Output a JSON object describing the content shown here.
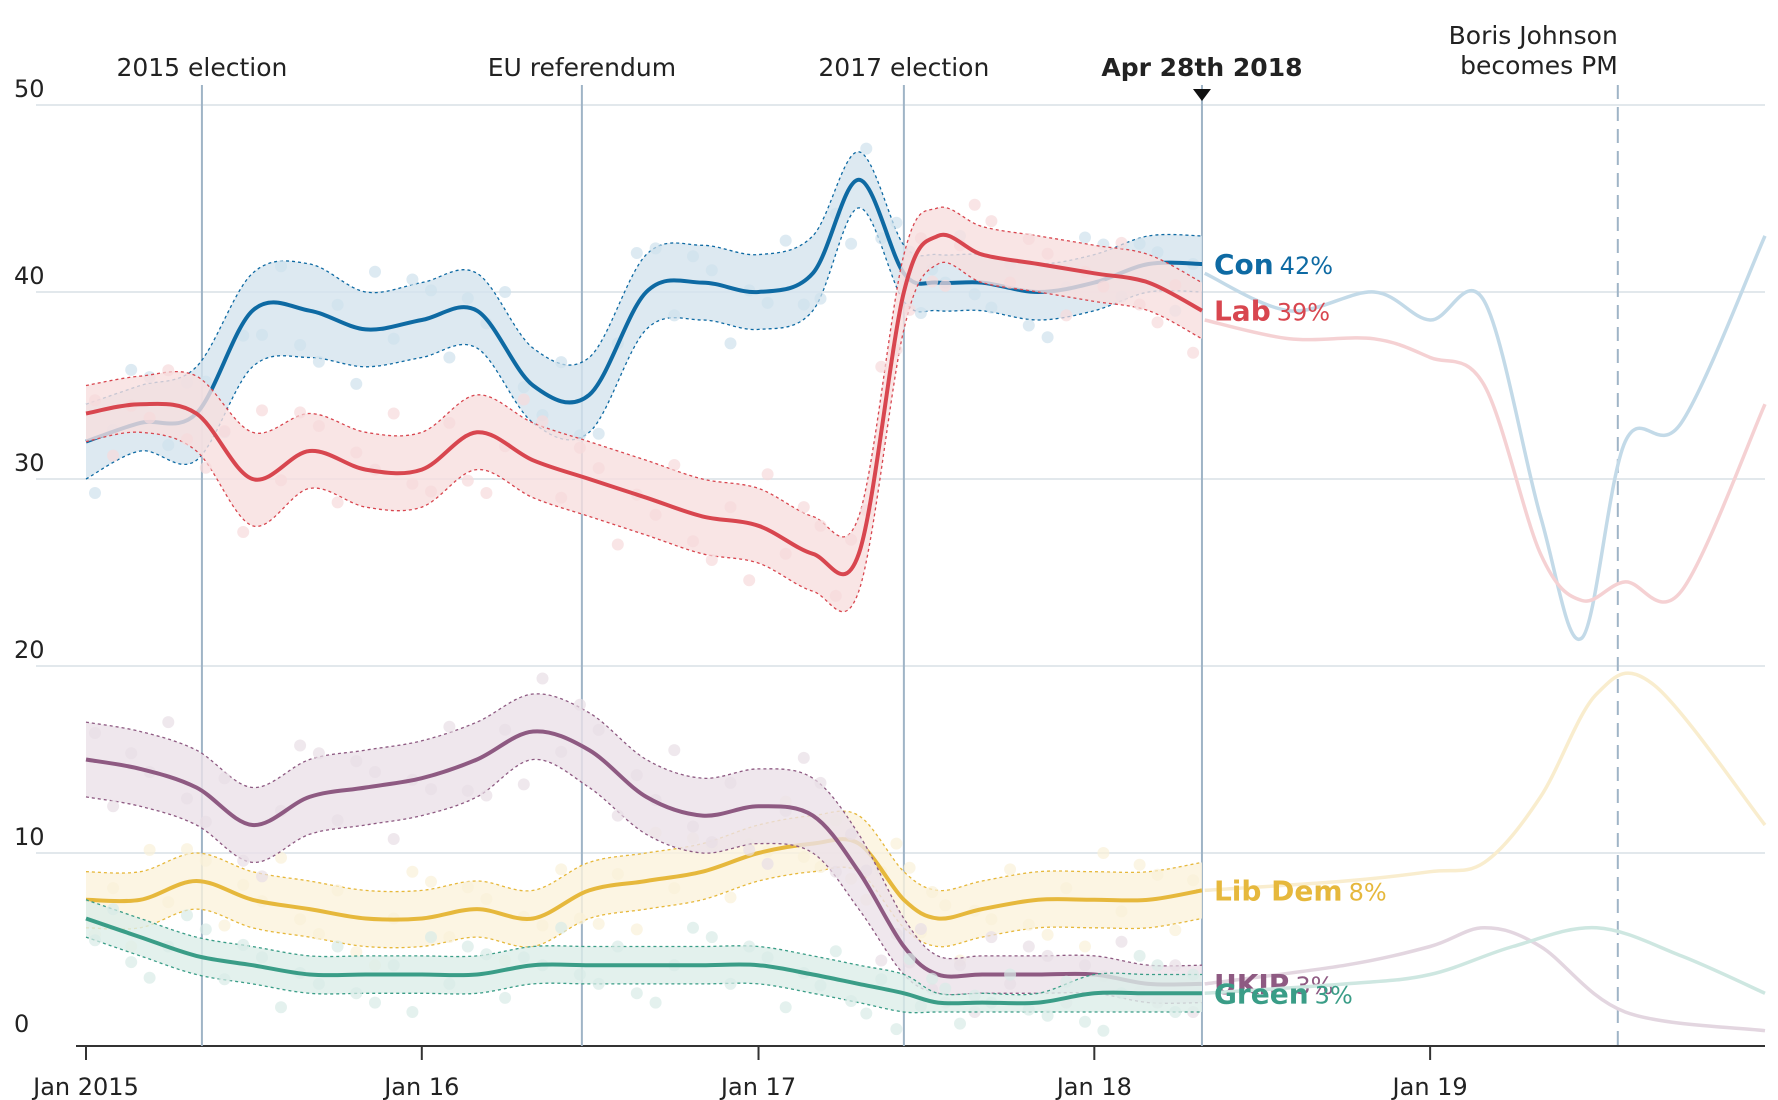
{
  "chart_data": {
    "type": "line",
    "title": "",
    "xlabel": "",
    "ylabel": "",
    "ylim": [
      0,
      50
    ],
    "yticks": [
      "0",
      "10",
      "20",
      "30",
      "40",
      "50"
    ],
    "xticks": [
      {
        "date": "2015-01-01",
        "label": "Jan 2015"
      },
      {
        "date": "2016-01-01",
        "label": "Jan 16"
      },
      {
        "date": "2017-01-01",
        "label": "Jan 17"
      },
      {
        "date": "2018-01-01",
        "label": "Jan 18"
      },
      {
        "date": "2019-01-01",
        "label": "Jan 19"
      }
    ],
    "xrange": [
      "2015-01-01",
      "2019-12-31"
    ],
    "grid": true,
    "legend": "inline labels at series ends",
    "current_date": "2018-04-28",
    "events": [
      {
        "date": "2015-05-07",
        "label": "2015 election",
        "style": "solid",
        "bold": false
      },
      {
        "date": "2016-06-23",
        "label": "EU referendum",
        "style": "solid",
        "bold": false
      },
      {
        "date": "2017-06-08",
        "label": "2017 election",
        "style": "solid",
        "bold": false
      },
      {
        "date": "2018-04-28",
        "label": "Apr 28th 2018",
        "style": "solid",
        "bold": true
      },
      {
        "date": "2019-07-24",
        "label": "Boris Johnson becomes PM",
        "label_lines": [
          "Boris Johnson",
          "becomes PM"
        ],
        "style": "dashed",
        "bold": false
      }
    ],
    "series": [
      {
        "name": "Con",
        "pct_label": "42%",
        "color": "#0e6aa3",
        "x": [
          "2015-01-01",
          "2015-03-01",
          "2015-05-01",
          "2015-07-01",
          "2015-09-01",
          "2015-11-01",
          "2016-01-01",
          "2016-03-01",
          "2016-05-01",
          "2016-07-01",
          "2016-09-01",
          "2016-11-01",
          "2017-01-01",
          "2017-03-01",
          "2017-04-20",
          "2017-06-08",
          "2017-07-15",
          "2017-09-01",
          "2017-11-01",
          "2018-01-01",
          "2018-03-01",
          "2018-04-28"
        ],
        "y": [
          32,
          33,
          33.5,
          39,
          39,
          38,
          38.5,
          39,
          35,
          34.5,
          40,
          40.5,
          40,
          41,
          46,
          41,
          40.5,
          40.5,
          40,
          40.5,
          41.5,
          41.5
        ],
        "band": [
          [
            30,
            34
          ],
          [
            31.5,
            35
          ],
          [
            31,
            36
          ],
          [
            36,
            41
          ],
          [
            36.5,
            41.5
          ],
          [
            36,
            40
          ],
          [
            36.5,
            40.5
          ],
          [
            37,
            41
          ],
          [
            33,
            37
          ],
          [
            32.5,
            36.5
          ],
          [
            38,
            42
          ],
          [
            38.5,
            42.5
          ],
          [
            38,
            42
          ],
          [
            39,
            43
          ],
          [
            44.5,
            47.5
          ],
          [
            39.5,
            42.5
          ],
          [
            39,
            42
          ],
          [
            39,
            42
          ],
          [
            38.5,
            41.5
          ],
          [
            39,
            42
          ],
          [
            40,
            43
          ],
          [
            40,
            43
          ]
        ],
        "future_x": [
          "2018-05-01",
          "2018-08-01",
          "2018-11-01",
          "2019-01-01",
          "2019-03-01",
          "2019-05-01",
          "2019-06-15",
          "2019-08-01",
          "2019-10-01",
          "2019-12-31"
        ],
        "future_y": [
          41,
          39,
          40,
          38.5,
          39.5,
          28,
          21.5,
          32,
          33,
          43
        ]
      },
      {
        "name": "Lab",
        "pct_label": "39%",
        "color": "#d8464f",
        "x": [
          "2015-01-01",
          "2015-03-01",
          "2015-05-01",
          "2015-07-01",
          "2015-09-01",
          "2015-11-01",
          "2016-01-01",
          "2016-03-01",
          "2016-05-01",
          "2016-07-01",
          "2016-09-01",
          "2016-11-01",
          "2017-01-01",
          "2017-03-01",
          "2017-04-20",
          "2017-06-08",
          "2017-07-15",
          "2017-09-01",
          "2017-11-01",
          "2018-01-01",
          "2018-03-01",
          "2018-04-28"
        ],
        "y": [
          33.5,
          34,
          33.5,
          30,
          31.5,
          30.5,
          30.5,
          32.5,
          31,
          30,
          29,
          28,
          27.5,
          26,
          26,
          40,
          43,
          42,
          41.5,
          41,
          40.5,
          39
        ],
        "band": [
          [
            32,
            35
          ],
          [
            32.5,
            35.5
          ],
          [
            31.5,
            35.5
          ],
          [
            27.5,
            32.5
          ],
          [
            29.5,
            33.5
          ],
          [
            28.5,
            32.5
          ],
          [
            28.5,
            32.5
          ],
          [
            30.5,
            34.5
          ],
          [
            29,
            33
          ],
          [
            28,
            32
          ],
          [
            27,
            31
          ],
          [
            26,
            30
          ],
          [
            25.5,
            29.5
          ],
          [
            24,
            28
          ],
          [
            24,
            28
          ],
          [
            38,
            42
          ],
          [
            41.5,
            44.5
          ],
          [
            40.5,
            43.5
          ],
          [
            40,
            43
          ],
          [
            39.5,
            42.5
          ],
          [
            39,
            42
          ],
          [
            37.5,
            40.5
          ]
        ],
        "future_x": [
          "2018-05-01",
          "2018-08-01",
          "2018-11-01",
          "2019-01-01",
          "2019-03-01",
          "2019-05-01",
          "2019-06-15",
          "2019-08-01",
          "2019-10-01",
          "2019-12-31"
        ],
        "future_y": [
          38.5,
          37.5,
          37.5,
          36.5,
          35,
          26,
          23.5,
          24.5,
          24,
          34
        ]
      },
      {
        "name": "Lib Dem",
        "pct_label": "8%",
        "color": "#e6b83c",
        "x": [
          "2015-01-01",
          "2015-03-01",
          "2015-05-01",
          "2015-07-01",
          "2015-09-01",
          "2015-11-01",
          "2016-01-01",
          "2016-03-01",
          "2016-05-01",
          "2016-07-01",
          "2016-09-01",
          "2016-11-01",
          "2017-01-01",
          "2017-03-01",
          "2017-04-20",
          "2017-06-08",
          "2017-07-15",
          "2017-09-01",
          "2017-11-01",
          "2018-01-01",
          "2018-03-01",
          "2018-04-28"
        ],
        "y": [
          7.5,
          7.5,
          8.5,
          7.5,
          7,
          6.5,
          6.5,
          7,
          6.5,
          8,
          8.5,
          9,
          10,
          10.5,
          10.5,
          7.5,
          6.5,
          7,
          7.5,
          7.5,
          7.5,
          8
        ],
        "band": [
          [
            6,
            9
          ],
          [
            6,
            9
          ],
          [
            7,
            10
          ],
          [
            6,
            9
          ],
          [
            5.5,
            8.5
          ],
          [
            5,
            8
          ],
          [
            5,
            8
          ],
          [
            5.5,
            8.5
          ],
          [
            5,
            8
          ],
          [
            6.5,
            9.5
          ],
          [
            7,
            10
          ],
          [
            7.5,
            10.5
          ],
          [
            8.5,
            11.5
          ],
          [
            9,
            12
          ],
          [
            9,
            12
          ],
          [
            6,
            9
          ],
          [
            5,
            8
          ],
          [
            5.5,
            8.5
          ],
          [
            6,
            9
          ],
          [
            6,
            9
          ],
          [
            6,
            9
          ],
          [
            6.5,
            9.5
          ]
        ],
        "future_x": [
          "2018-05-01",
          "2018-10-01",
          "2019-01-01",
          "2019-03-01",
          "2019-05-01",
          "2019-07-01",
          "2019-09-01",
          "2019-12-31"
        ],
        "future_y": [
          8,
          8.5,
          9,
          9.5,
          13,
          18.5,
          19,
          11.5
        ]
      },
      {
        "name": "UKIP",
        "pct_label": "3%",
        "color": "#8e5a82",
        "x": [
          "2015-01-01",
          "2015-03-01",
          "2015-05-01",
          "2015-07-01",
          "2015-09-01",
          "2015-11-01",
          "2016-01-01",
          "2016-03-01",
          "2016-05-01",
          "2016-07-01",
          "2016-09-01",
          "2016-11-01",
          "2017-01-01",
          "2017-03-01",
          "2017-04-20",
          "2017-06-08",
          "2017-07-15",
          "2017-09-01",
          "2017-11-01",
          "2018-01-01",
          "2018-03-01",
          "2018-04-28"
        ],
        "y": [
          15,
          14.5,
          13.5,
          11.5,
          13,
          13.5,
          14,
          15,
          16.5,
          15.5,
          13,
          12,
          12.5,
          12,
          9,
          5,
          3.5,
          3.5,
          3.5,
          3.5,
          3,
          3
        ],
        "band": [
          [
            13,
            17
          ],
          [
            12.5,
            16.5
          ],
          [
            11.5,
            15.5
          ],
          [
            9.5,
            13.5
          ],
          [
            11,
            15
          ],
          [
            11.5,
            15.5
          ],
          [
            12,
            16
          ],
          [
            13,
            17
          ],
          [
            15,
            18.5
          ],
          [
            13.5,
            17.5
          ],
          [
            11,
            15
          ],
          [
            10,
            14
          ],
          [
            10.5,
            14.5
          ],
          [
            10,
            14
          ],
          [
            7,
            11
          ],
          [
            3.5,
            6.5
          ],
          [
            2.5,
            4.5
          ],
          [
            2.5,
            4.5
          ],
          [
            2.5,
            4.5
          ],
          [
            2.5,
            4.5
          ],
          [
            2,
            4
          ],
          [
            2,
            4
          ]
        ],
        "future_x": [
          "2018-05-01",
          "2018-10-01",
          "2019-01-01",
          "2019-03-01",
          "2019-05-01",
          "2019-08-01",
          "2019-12-31"
        ],
        "future_y": [
          3,
          4,
          5,
          6,
          5,
          1.5,
          0.5
        ]
      },
      {
        "name": "Green",
        "pct_label": "3%",
        "color": "#3a9d87",
        "x": [
          "2015-01-01",
          "2015-03-01",
          "2015-05-01",
          "2015-07-01",
          "2015-09-01",
          "2015-11-01",
          "2016-01-01",
          "2016-03-01",
          "2016-05-01",
          "2016-07-01",
          "2016-09-01",
          "2016-11-01",
          "2017-01-01",
          "2017-03-01",
          "2017-04-20",
          "2017-06-08",
          "2017-07-15",
          "2017-09-01",
          "2017-11-01",
          "2018-01-01",
          "2018-03-01",
          "2018-04-28"
        ],
        "y": [
          6.5,
          5.5,
          4.5,
          4,
          3.5,
          3.5,
          3.5,
          3.5,
          4,
          4,
          4,
          4,
          4,
          3.5,
          3,
          2.5,
          2,
          2,
          2,
          2.5,
          2.5,
          2.5
        ],
        "band": [
          [
            5.5,
            7.5
          ],
          [
            4.5,
            6.5
          ],
          [
            3.5,
            5.5
          ],
          [
            3,
            5
          ],
          [
            2.5,
            4.5
          ],
          [
            2.5,
            4.5
          ],
          [
            2.5,
            4.5
          ],
          [
            2.5,
            4.5
          ],
          [
            3,
            5
          ],
          [
            3,
            5
          ],
          [
            3,
            5
          ],
          [
            3,
            5
          ],
          [
            3,
            5
          ],
          [
            2.5,
            4.5
          ],
          [
            2,
            4
          ],
          [
            1.5,
            3.5
          ],
          [
            1.5,
            2.5
          ],
          [
            1.5,
            2.5
          ],
          [
            1.5,
            2.5
          ],
          [
            1.5,
            3.5
          ],
          [
            1.5,
            3.5
          ],
          [
            1.5,
            3.5
          ]
        ],
        "future_x": [
          "2018-05-01",
          "2018-10-01",
          "2019-01-01",
          "2019-04-01",
          "2019-07-01",
          "2019-10-01",
          "2019-12-31"
        ],
        "future_y": [
          2.5,
          3,
          3.5,
          5,
          6,
          4.5,
          2.5
        ]
      }
    ]
  }
}
